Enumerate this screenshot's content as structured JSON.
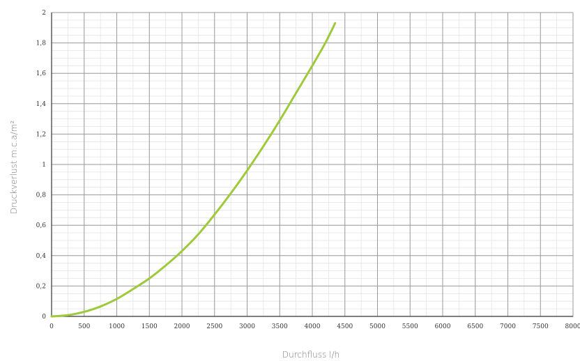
{
  "chart_data": {
    "type": "line",
    "xlabel": "Durchfluss l/h",
    "ylabel": "Druckverlust m.c.a/m²",
    "xlim": [
      0,
      8000
    ],
    "ylim": [
      0,
      2
    ],
    "x_ticks": [
      "0",
      "500",
      "1000",
      "1500",
      "2000",
      "2500",
      "3000",
      "3500",
      "4000",
      "4500",
      "5000",
      "5500",
      "6000",
      "6500",
      "7000",
      "7500",
      "8000"
    ],
    "y_ticks": [
      "0",
      "0,2",
      "0,4",
      "0,6",
      "0,8",
      "1",
      "1,2",
      "1,4",
      "1,6",
      "1,8",
      "2"
    ],
    "grid": true,
    "minor_grid": true,
    "series": [
      {
        "color": "#9dc93b",
        "points": [
          {
            "x": 0,
            "y": 0
          },
          {
            "x": 250,
            "y": 0.008
          },
          {
            "x": 500,
            "y": 0.03
          },
          {
            "x": 750,
            "y": 0.065
          },
          {
            "x": 1000,
            "y": 0.115
          },
          {
            "x": 1250,
            "y": 0.18
          },
          {
            "x": 1500,
            "y": 0.25
          },
          {
            "x": 1750,
            "y": 0.335
          },
          {
            "x": 2000,
            "y": 0.43
          },
          {
            "x": 2250,
            "y": 0.54
          },
          {
            "x": 2500,
            "y": 0.67
          },
          {
            "x": 2750,
            "y": 0.81
          },
          {
            "x": 3000,
            "y": 0.96
          },
          {
            "x": 3250,
            "y": 1.12
          },
          {
            "x": 3500,
            "y": 1.29
          },
          {
            "x": 3750,
            "y": 1.47
          },
          {
            "x": 4000,
            "y": 1.65
          },
          {
            "x": 4200,
            "y": 1.8
          },
          {
            "x": 4350,
            "y": 1.93
          }
        ]
      }
    ]
  }
}
